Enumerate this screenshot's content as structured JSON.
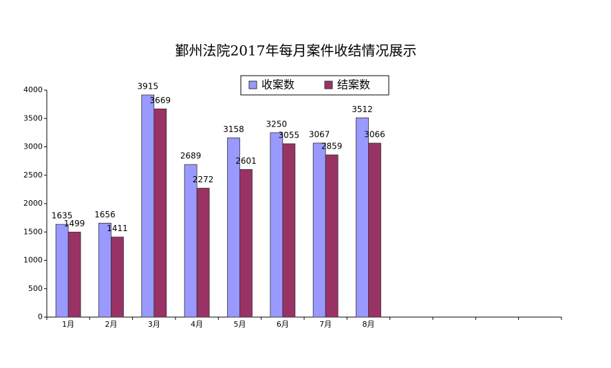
{
  "chart_data": {
    "type": "bar",
    "title": "鄞州法院2017年每月案件收结情况展示",
    "categories": [
      "1月",
      "2月",
      "3月",
      "4月",
      "5月",
      "6月",
      "7月",
      "8月",
      null,
      null,
      null,
      null
    ],
    "series": [
      {
        "name": "收案数",
        "color": "#9999ff",
        "values": [
          1635,
          1656,
          3915,
          2689,
          3158,
          3250,
          3067,
          3512,
          null,
          null,
          null,
          null
        ]
      },
      {
        "name": "结案数",
        "color": "#993366",
        "values": [
          1499,
          1411,
          3669,
          2272,
          2601,
          3055,
          2859,
          3066,
          null,
          null,
          null,
          null
        ]
      }
    ],
    "ylim": [
      0,
      4000
    ],
    "yticks": [
      0,
      500,
      1000,
      1500,
      2000,
      2500,
      3000,
      3500,
      4000
    ],
    "legend": "top"
  }
}
